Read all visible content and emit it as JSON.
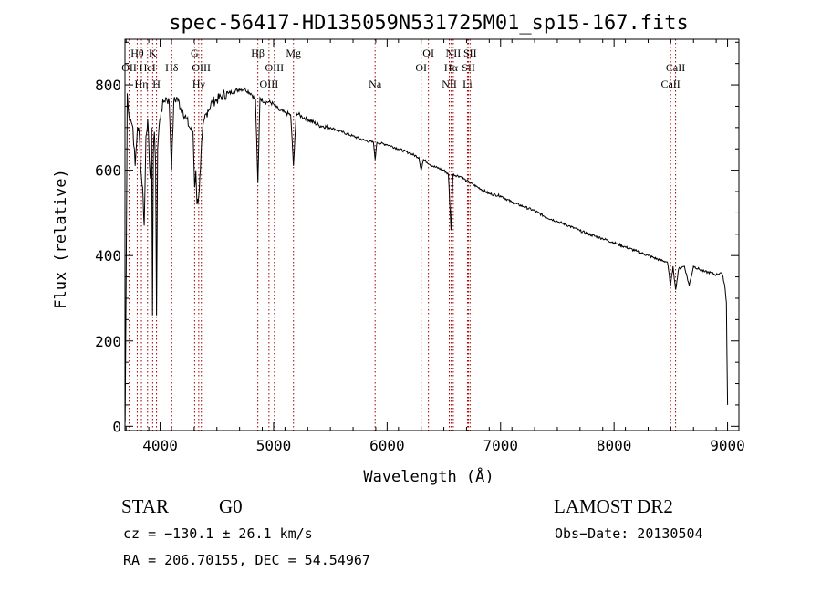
{
  "chart_data": {
    "type": "line",
    "title": "spec-56417-HD135059N531725M01_sp15-167.fits",
    "xlabel": "Wavelength (Å)",
    "ylabel": "Flux (relative)",
    "xlim": [
      3690,
      9100
    ],
    "ylim": [
      -10,
      907
    ],
    "xticks": [
      4000,
      5000,
      6000,
      7000,
      8000,
      9000
    ],
    "yticks": [
      0,
      200,
      400,
      600,
      800
    ],
    "grid": false,
    "series": [
      {
        "name": "spectrum",
        "color": "#000000",
        "x": [
          3692,
          3700,
          3710,
          3720,
          3740,
          3760,
          3780,
          3800,
          3815,
          3830,
          3845,
          3860,
          3875,
          3890,
          3905,
          3915,
          3925,
          3933,
          3940,
          3950,
          3960,
          3968,
          3978,
          3990,
          4010,
          4030,
          4050,
          4080,
          4101,
          4120,
          4150,
          4180,
          4200,
          4230,
          4260,
          4290,
          4304,
          4315,
          4325,
          4340,
          4355,
          4370,
          4390,
          4420,
          4460,
          4500,
          4550,
          4600,
          4650,
          4700,
          4750,
          4800,
          4840,
          4861,
          4880,
          4920,
          4960,
          5000,
          5050,
          5100,
          5150,
          5175,
          5200,
          5250,
          5300,
          5400,
          5500,
          5600,
          5700,
          5800,
          5880,
          5894,
          5910,
          6000,
          6100,
          6200,
          6280,
          6300,
          6320,
          6400,
          6500,
          6540,
          6563,
          6580,
          6650,
          6700,
          6800,
          6900,
          7000,
          7100,
          7200,
          7300,
          7400,
          7500,
          7600,
          7700,
          7800,
          7900,
          8000,
          8100,
          8200,
          8300,
          8400,
          8470,
          8498,
          8520,
          8542,
          8570,
          8620,
          8662,
          8700,
          8750,
          8800,
          8850,
          8900,
          8940,
          8960,
          8975,
          8990,
          9000
        ],
        "y": [
          10,
          320,
          780,
          740,
          720,
          700,
          610,
          700,
          690,
          600,
          560,
          470,
          680,
          720,
          620,
          580,
          700,
          260,
          640,
          690,
          620,
          260,
          650,
          700,
          740,
          760,
          770,
          760,
          600,
          760,
          770,
          745,
          740,
          720,
          700,
          690,
          560,
          600,
          520,
          540,
          600,
          680,
          720,
          740,
          760,
          765,
          775,
          780,
          785,
          790,
          790,
          780,
          765,
          570,
          770,
          760,
          760,
          755,
          740,
          735,
          730,
          610,
          735,
          725,
          720,
          705,
          700,
          690,
          680,
          670,
          665,
          625,
          665,
          660,
          650,
          640,
          630,
          600,
          625,
          610,
          600,
          590,
          460,
          590,
          585,
          575,
          560,
          545,
          540,
          525,
          515,
          505,
          490,
          480,
          470,
          458,
          448,
          440,
          430,
          420,
          410,
          400,
          390,
          385,
          330,
          375,
          320,
          370,
          375,
          330,
          375,
          368,
          362,
          360,
          355,
          360,
          350,
          330,
          290,
          50
        ]
      }
    ],
    "lines": [
      {
        "label": "OII",
        "wave": 3727,
        "row": 1
      },
      {
        "label": "Hθ",
        "wave": 3798,
        "row": 0
      },
      {
        "label": "Hη",
        "wave": 3835,
        "row": 2
      },
      {
        "label": "HeI",
        "wave": 3889,
        "row": 1
      },
      {
        "label": "K",
        "wave": 3934,
        "row": 0
      },
      {
        "label": "H",
        "wave": 3968,
        "row": 2
      },
      {
        "label": "Hδ",
        "wave": 4102,
        "row": 1
      },
      {
        "label": "G",
        "wave": 4304,
        "row": 0
      },
      {
        "label": "Hγ",
        "wave": 4340,
        "row": 2
      },
      {
        "label": "OIII",
        "wave": 4363,
        "row": 1
      },
      {
        "label": "Hβ",
        "wave": 4861,
        "row": 0
      },
      {
        "label": "OIII",
        "wave": 4959,
        "row": 2
      },
      {
        "label": "OIII",
        "wave": 5007,
        "row": 1
      },
      {
        "label": "Mg",
        "wave": 5175,
        "row": 0
      },
      {
        "label": "Na",
        "wave": 5894,
        "row": 2
      },
      {
        "label": "OI",
        "wave": 6300,
        "row": 1
      },
      {
        "label": "OI",
        "wave": 6364,
        "row": 0
      },
      {
        "label": "NII",
        "wave": 6548,
        "row": 2
      },
      {
        "label": "Hα",
        "wave": 6563,
        "row": 1
      },
      {
        "label": "NII",
        "wave": 6583,
        "row": 0
      },
      {
        "label": "Li",
        "wave": 6708,
        "row": 2
      },
      {
        "label": "SII",
        "wave": 6717,
        "row": 1
      },
      {
        "label": "SII",
        "wave": 6731,
        "row": 0
      },
      {
        "label": "CaII",
        "wave": 8498,
        "row": 2
      },
      {
        "label": "CaII",
        "wave": 8542,
        "row": 1
      }
    ],
    "line_color": "#a00000"
  },
  "info": {
    "object_class": "STAR",
    "subclass": "G0",
    "survey": "LAMOST DR2",
    "cz": "cz = −130.1 ± 26.1 km/s",
    "obs_date": "Obs−Date: 20130504",
    "coords": "RA = 206.70155, DEC =  54.54967"
  }
}
